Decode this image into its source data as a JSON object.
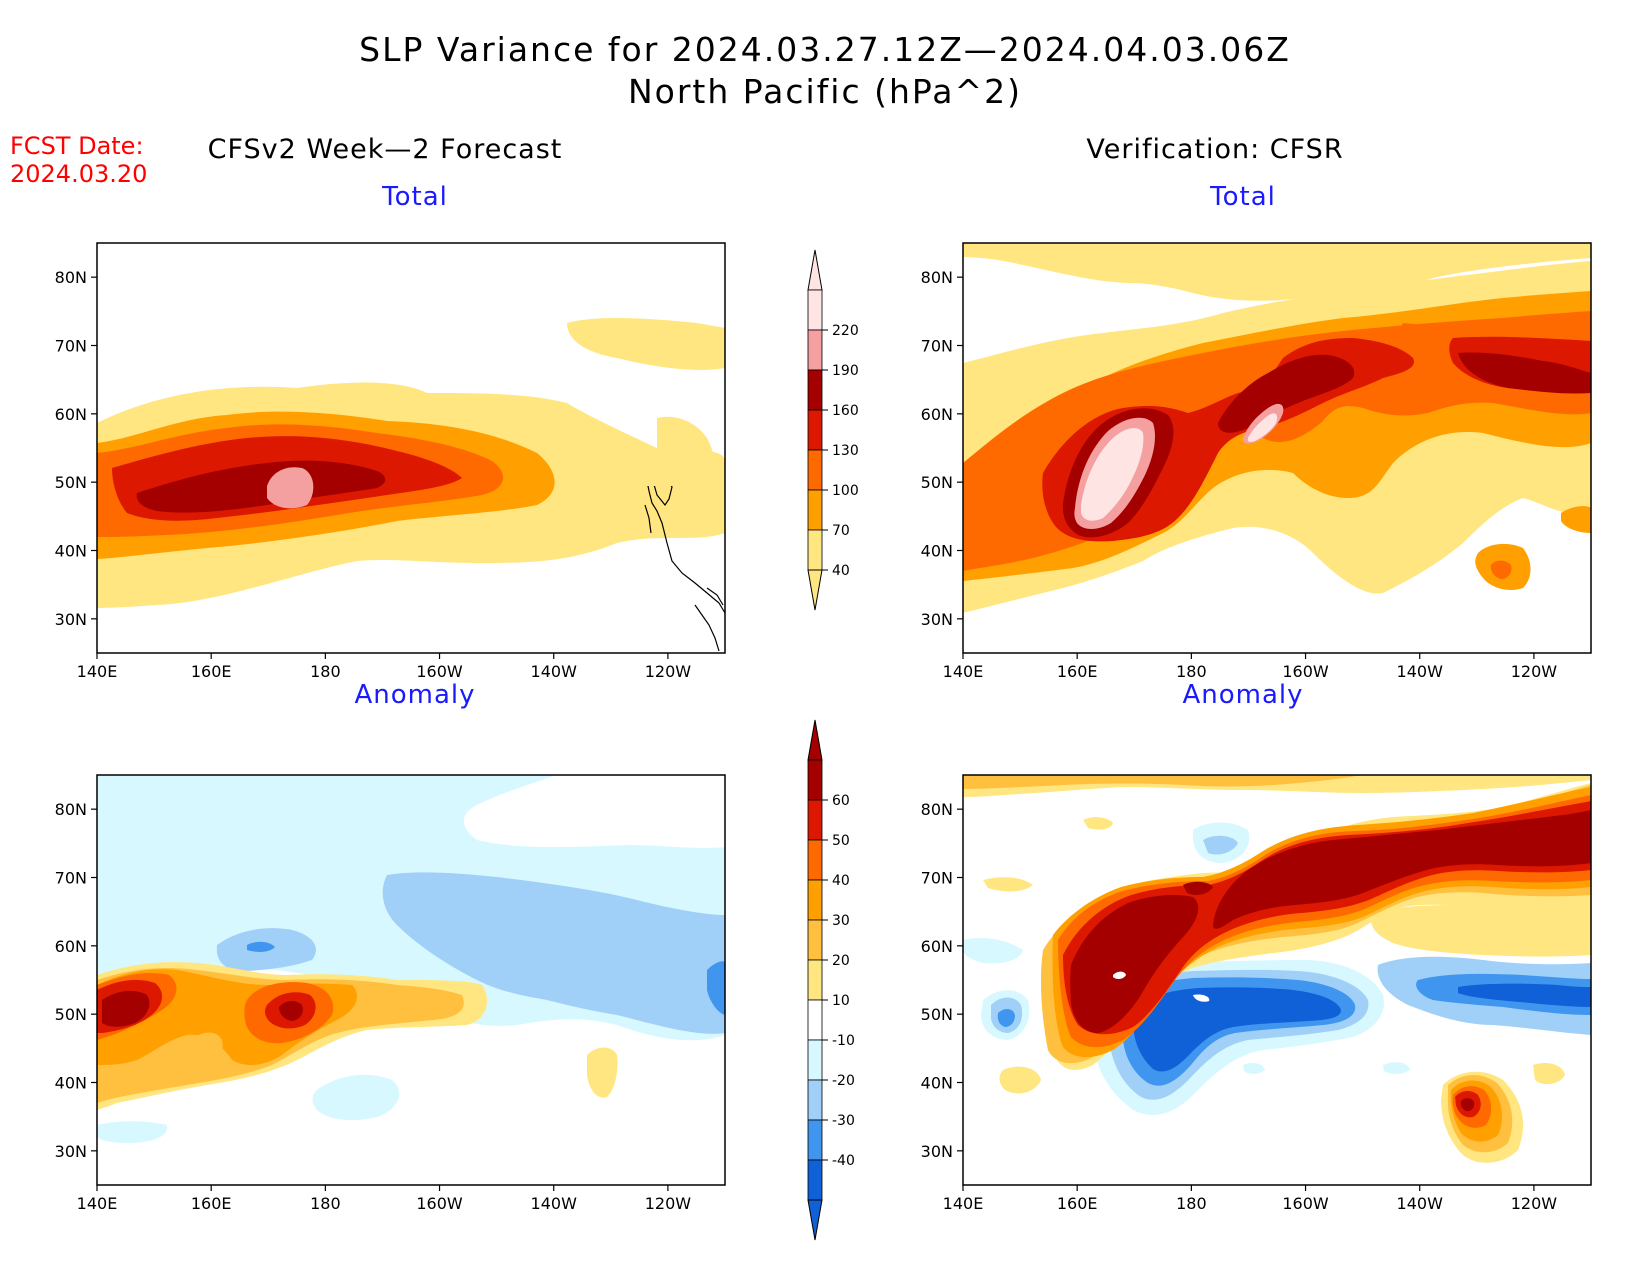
{
  "title": {
    "line1": "SLP Variance for 2024.03.27.12Z—2024.04.03.06Z",
    "line2": "North Pacific (hPa^2)"
  },
  "fcst": {
    "label": "FCST Date:",
    "date": "2024.03.20"
  },
  "columns": {
    "left": "CFSv2 Week—2 Forecast",
    "right": "Verification: CFSR"
  },
  "panels": {
    "total": "Total",
    "anomaly": "Anomaly"
  },
  "axes": {
    "lat_labels": [
      "80N",
      "70N",
      "60N",
      "50N",
      "40N",
      "30N"
    ],
    "lat_values": [
      80,
      70,
      60,
      50,
      40,
      30
    ],
    "lon_labels": [
      "140E",
      "160E",
      "180",
      "160W",
      "140W",
      "120W"
    ],
    "lon_values": [
      140,
      160,
      180,
      200,
      220,
      240
    ],
    "lon_range": [
      140,
      250
    ],
    "lat_range": [
      25,
      85
    ]
  },
  "colorbars": {
    "total": {
      "labels": [
        "220",
        "190",
        "160",
        "130",
        "100",
        "70",
        "40"
      ],
      "colors": [
        "#ffe4e4",
        "#f4a0a0",
        "#a40000",
        "#dd1800",
        "#ff6a00",
        "#ffa000",
        "#ffe680"
      ]
    },
    "anomaly": {
      "labels": [
        "60",
        "50",
        "40",
        "30",
        "20",
        "10",
        "-10",
        "-20",
        "-30",
        "-40"
      ],
      "colors": [
        "#a40000",
        "#dd1800",
        "#ff6a00",
        "#ffa000",
        "#ffc040",
        "#ffe680",
        "#ffffff",
        "#d8f8ff",
        "#a0d0f8",
        "#4096ee",
        "#1060d8"
      ]
    }
  },
  "colors": {
    "fcst_text": "#ff0000",
    "panel_title": "#1a1aff"
  }
}
